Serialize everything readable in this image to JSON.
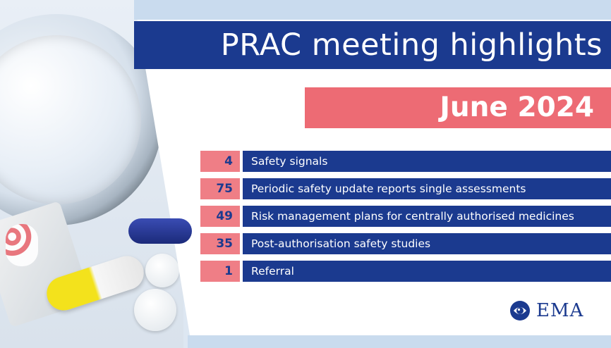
{
  "title": "PRAC meeting highlights",
  "date": "June 2024",
  "items": [
    {
      "count": "4",
      "label": "Safety signals"
    },
    {
      "count": "75",
      "label": "Periodic safety update reports single assessments"
    },
    {
      "count": "49",
      "label": "Risk management plans for centrally authorised medicines"
    },
    {
      "count": "35",
      "label": "Post-authorisation safety studies"
    },
    {
      "count": "1",
      "label": "Referral"
    }
  ],
  "logo": {
    "text": "EMA",
    "icon": "ema-globe-icon"
  },
  "illustration": {
    "icon": "magnifier-and-pills-illustration"
  },
  "colors": {
    "navy": "#1b3a8f",
    "coral": "#ed6b74",
    "pale_blue": "#c9dbee"
  }
}
